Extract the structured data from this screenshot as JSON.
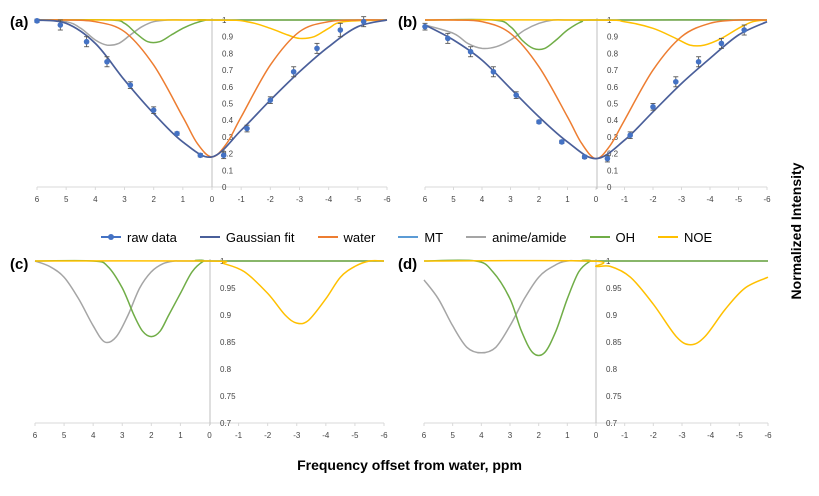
{
  "figure": {
    "x_axis_label": "Frequency offset from water, ppm",
    "y_axis_label": "Normalized Intensity"
  },
  "colors": {
    "raw": "#4472C4",
    "gauss": "#4A5F9A",
    "water": "#ED7D31",
    "mt": "#5B9BD5",
    "amide": "#A5A5A5",
    "oh": "#70AD47",
    "noe": "#FFC000",
    "axis": "#D9D9D9",
    "vline": "#BFBFBF"
  },
  "legend": [
    {
      "label": "raw data",
      "color_key": "raw",
      "kind": "marker-line"
    },
    {
      "label": "Gaussian fit",
      "color_key": "gauss",
      "kind": "line"
    },
    {
      "label": "water",
      "color_key": "water",
      "kind": "line"
    },
    {
      "label": "MT",
      "color_key": "mt",
      "kind": "line"
    },
    {
      "label": "anime/amide",
      "color_key": "amide",
      "kind": "line"
    },
    {
      "label": "OH",
      "color_key": "oh",
      "kind": "line"
    },
    {
      "label": "NOE",
      "color_key": "noe",
      "kind": "line"
    }
  ],
  "chart_data": [
    {
      "panel": "(a)",
      "type": "line",
      "x_ticks": [
        6,
        5,
        4,
        3,
        2,
        1,
        0,
        -1,
        -2,
        -3,
        -4,
        -5,
        -6
      ],
      "x_tick_labels": [
        "6",
        "5",
        "4",
        "3",
        "2",
        "1",
        "0",
        "-1",
        "-2",
        "-3",
        "-4",
        "-5",
        "-6"
      ],
      "xlim": [
        6,
        -6
      ],
      "ylim": [
        0,
        1
      ],
      "y_ticks": [
        0,
        0.1,
        0.2,
        0.3,
        0.4,
        0.5,
        0.6,
        0.7,
        0.8,
        0.9,
        1
      ],
      "y_tick_labels": [
        "0",
        "0.1",
        "0.2",
        "0.3",
        "0.4",
        "0.5",
        "0.6",
        "0.7",
        "0.8",
        "0.9",
        "1"
      ],
      "raw_data": {
        "x": [
          6,
          5.2,
          4.3,
          3.6,
          2.8,
          2.0,
          1.2,
          0.4,
          -0.4,
          -1.2,
          -2.0,
          -2.8,
          -3.6,
          -4.4,
          -5.2
        ],
        "y": [
          0.995,
          0.97,
          0.87,
          0.75,
          0.61,
          0.46,
          0.32,
          0.19,
          0.19,
          0.35,
          0.52,
          0.69,
          0.83,
          0.94,
          0.99
        ],
        "err": [
          0.01,
          0.03,
          0.03,
          0.03,
          0.02,
          0.02,
          0.01,
          0.01,
          0.02,
          0.02,
          0.02,
          0.03,
          0.03,
          0.04,
          0.03
        ]
      },
      "series": [
        {
          "name": "Gaussian fit",
          "x": [
            6,
            5,
            4,
            3,
            2,
            1,
            0,
            -1,
            -2,
            -3,
            -4,
            -5,
            -6
          ],
          "y": [
            1.0,
            0.98,
            0.86,
            0.64,
            0.44,
            0.27,
            0.18,
            0.34,
            0.52,
            0.69,
            0.84,
            0.96,
            1.0
          ]
        },
        {
          "name": "water",
          "x": [
            6,
            5,
            4,
            3,
            2,
            1,
            0.5,
            0,
            -0.5,
            -1,
            -2,
            -3,
            -4,
            -5,
            -6
          ],
          "y": [
            1.0,
            1.0,
            0.99,
            0.93,
            0.73,
            0.42,
            0.26,
            0.18,
            0.26,
            0.42,
            0.73,
            0.93,
            0.99,
            1.0,
            1.0
          ]
        },
        {
          "name": "anime/amide",
          "x": [
            6,
            5,
            4.5,
            4,
            3.6,
            3.2,
            2.8,
            2.4,
            2.0,
            1.5,
            1.0,
            0,
            -6
          ],
          "y": [
            1.0,
            0.99,
            0.95,
            0.88,
            0.85,
            0.86,
            0.91,
            0.96,
            0.99,
            1.0,
            1.0,
            1.0,
            1.0
          ]
        },
        {
          "name": "OH",
          "x": [
            6,
            3.5,
            3.0,
            2.6,
            2.2,
            1.8,
            1.4,
            1.0,
            0.6,
            0.2,
            0,
            -6
          ],
          "y": [
            1.0,
            1.0,
            0.98,
            0.92,
            0.87,
            0.87,
            0.91,
            0.95,
            0.98,
            1.0,
            1.0,
            1.0
          ]
        },
        {
          "name": "NOE",
          "x": [
            6,
            0,
            -1.2,
            -2.0,
            -2.6,
            -3.0,
            -3.5,
            -4.0,
            -4.5,
            -6
          ],
          "y": [
            1.0,
            1.0,
            0.99,
            0.95,
            0.91,
            0.89,
            0.9,
            0.95,
            0.99,
            1.0
          ]
        }
      ]
    },
    {
      "panel": "(b)",
      "type": "line",
      "x_ticks": [
        6,
        5,
        4,
        3,
        2,
        1,
        0,
        -1,
        -2,
        -3,
        -4,
        -5,
        -6
      ],
      "x_tick_labels": [
        "6",
        "5",
        "4",
        "3",
        "2",
        "1",
        "0",
        "-1",
        "-2",
        "-3",
        "-4",
        "-5",
        "-6"
      ],
      "xlim": [
        6,
        -6
      ],
      "ylim": [
        0,
        1
      ],
      "y_ticks": [
        0,
        0.1,
        0.2,
        0.3,
        0.4,
        0.5,
        0.6,
        0.7,
        0.8,
        0.9,
        1
      ],
      "y_tick_labels": [
        "0",
        "0.1",
        "0.2",
        "0.3",
        "0.4",
        "0.5",
        "0.6",
        "0.7",
        "0.8",
        "0.9",
        "1"
      ],
      "raw_data": {
        "x": [
          6,
          5.2,
          4.4,
          3.6,
          2.8,
          2.0,
          1.2,
          0.4,
          -0.4,
          -1.2,
          -2.0,
          -2.8,
          -3.6,
          -4.4,
          -5.2
        ],
        "y": [
          0.96,
          0.89,
          0.81,
          0.69,
          0.55,
          0.39,
          0.27,
          0.18,
          0.17,
          0.31,
          0.48,
          0.63,
          0.75,
          0.86,
          0.94
        ],
        "err": [
          0.02,
          0.03,
          0.03,
          0.03,
          0.02,
          0.01,
          0.01,
          0.01,
          0.02,
          0.02,
          0.02,
          0.03,
          0.03,
          0.03,
          0.03
        ]
      },
      "series": [
        {
          "name": "Gaussian fit",
          "x": [
            6,
            5,
            4,
            3,
            2,
            1,
            0,
            -1,
            -2,
            -3,
            -4,
            -5,
            -6
          ],
          "y": [
            0.97,
            0.88,
            0.76,
            0.59,
            0.42,
            0.27,
            0.17,
            0.28,
            0.45,
            0.62,
            0.77,
            0.91,
            0.99
          ]
        },
        {
          "name": "water",
          "x": [
            6,
            5,
            4,
            3,
            2,
            1,
            0.5,
            0,
            -0.5,
            -1,
            -2,
            -3,
            -4,
            -5,
            -6
          ],
          "y": [
            1.0,
            1.0,
            0.99,
            0.92,
            0.72,
            0.42,
            0.26,
            0.17,
            0.25,
            0.4,
            0.7,
            0.9,
            0.98,
            1.0,
            1.0
          ]
        },
        {
          "name": "anime/amide",
          "x": [
            6,
            5,
            4.5,
            4,
            3.5,
            3,
            2.5,
            2,
            1.5,
            1,
            0,
            -6
          ],
          "y": [
            0.97,
            0.92,
            0.86,
            0.83,
            0.84,
            0.88,
            0.94,
            0.98,
            1.0,
            1.0,
            1.0,
            1.0
          ]
        },
        {
          "name": "OH",
          "x": [
            6,
            3.6,
            3.0,
            2.6,
            2.2,
            1.8,
            1.4,
            1.0,
            0.5,
            0,
            -6
          ],
          "y": [
            1.0,
            1.0,
            0.96,
            0.88,
            0.83,
            0.83,
            0.88,
            0.94,
            0.99,
            1.0,
            1.0
          ]
        },
        {
          "name": "NOE",
          "x": [
            6,
            0,
            -1.0,
            -2.0,
            -2.8,
            -3.3,
            -3.8,
            -4.4,
            -5.0,
            -5.5,
            -6
          ],
          "y": [
            1.0,
            1.0,
            0.99,
            0.95,
            0.89,
            0.85,
            0.85,
            0.89,
            0.95,
            0.99,
            1.0
          ]
        }
      ]
    },
    {
      "panel": "(c)",
      "type": "line",
      "x_ticks": [
        6,
        5,
        4,
        3,
        2,
        1,
        0,
        -1,
        -2,
        -3,
        -4,
        -5,
        -6
      ],
      "x_tick_labels": [
        "6",
        "5",
        "4",
        "3",
        "2",
        "1",
        "0",
        "-1",
        "-2",
        "-3",
        "-4",
        "-5",
        "-6"
      ],
      "xlim": [
        6,
        -6
      ],
      "ylim": [
        0.7,
        1
      ],
      "y_ticks": [
        0.7,
        0.75,
        0.8,
        0.85,
        0.9,
        0.95,
        1
      ],
      "y_tick_labels": [
        "0.7",
        "0.75",
        "0.8",
        "0.85",
        "0.9",
        "0.95",
        "1"
      ],
      "series": [
        {
          "name": "anime/amide",
          "x": [
            6,
            5.5,
            5,
            4.5,
            4,
            3.6,
            3.2,
            2.8,
            2.4,
            2.0,
            1.6,
            1.2,
            1.0,
            0,
            -6
          ],
          "y": [
            1.0,
            0.99,
            0.97,
            0.93,
            0.88,
            0.85,
            0.86,
            0.9,
            0.95,
            0.98,
            0.995,
            1.0,
            1.0,
            1.0,
            1.0
          ]
        },
        {
          "name": "OH",
          "x": [
            6,
            4,
            3.5,
            3.0,
            2.6,
            2.3,
            2.0,
            1.7,
            1.4,
            1.0,
            0.6,
            0.2,
            0,
            -6
          ],
          "y": [
            1.0,
            1.0,
            0.99,
            0.95,
            0.9,
            0.87,
            0.86,
            0.87,
            0.9,
            0.94,
            0.98,
            1.0,
            1.0,
            1.0
          ]
        },
        {
          "name": "NOE",
          "x": [
            6,
            0,
            -0.5,
            -1.2,
            -2.0,
            -2.6,
            -3.0,
            -3.4,
            -4.0,
            -4.5,
            -5.0,
            -5.5,
            -6
          ],
          "y": [
            1.0,
            1.0,
            0.995,
            0.98,
            0.94,
            0.9,
            0.885,
            0.89,
            0.93,
            0.97,
            0.99,
            1.0,
            1.0
          ]
        }
      ]
    },
    {
      "panel": "(d)",
      "type": "line",
      "x_ticks": [
        6,
        5,
        4,
        3,
        2,
        1,
        0,
        -1,
        -2,
        -3,
        -4,
        -5,
        -6
      ],
      "x_tick_labels": [
        "6",
        "5",
        "4",
        "3",
        "2",
        "1",
        "0",
        "-1",
        "-2",
        "-3",
        "-4",
        "-5",
        "-6"
      ],
      "xlim": [
        6,
        -6
      ],
      "ylim": [
        0.7,
        1
      ],
      "y_ticks": [
        0.7,
        0.75,
        0.8,
        0.85,
        0.9,
        0.95,
        1
      ],
      "y_tick_labels": [
        "0.7",
        "0.75",
        "0.8",
        "0.85",
        "0.9",
        "0.95",
        "1"
      ],
      "series": [
        {
          "name": "anime/amide",
          "x": [
            6,
            5.5,
            5,
            4.5,
            4,
            3.5,
            3,
            2.5,
            2,
            1.5,
            1,
            0,
            -6
          ],
          "y": [
            0.965,
            0.93,
            0.88,
            0.84,
            0.83,
            0.84,
            0.88,
            0.93,
            0.97,
            0.99,
            1.0,
            1.0,
            1.0
          ]
        },
        {
          "name": "OH",
          "x": [
            6,
            4.2,
            3.6,
            3.0,
            2.6,
            2.2,
            1.8,
            1.4,
            1.0,
            0.6,
            0.2,
            0,
            -6
          ],
          "y": [
            1.0,
            1.0,
            0.98,
            0.93,
            0.87,
            0.83,
            0.83,
            0.87,
            0.93,
            0.98,
            1.0,
            1.0,
            1.0
          ]
        },
        {
          "name": "NOE",
          "x": [
            6,
            0.2,
            0,
            -0.5,
            -1.2,
            -2.0,
            -2.8,
            -3.3,
            -3.8,
            -4.5,
            -5.2,
            -6
          ],
          "y": [
            1.0,
            1.0,
            0.99,
            0.99,
            0.97,
            0.92,
            0.86,
            0.845,
            0.86,
            0.91,
            0.95,
            0.97
          ]
        }
      ]
    }
  ]
}
